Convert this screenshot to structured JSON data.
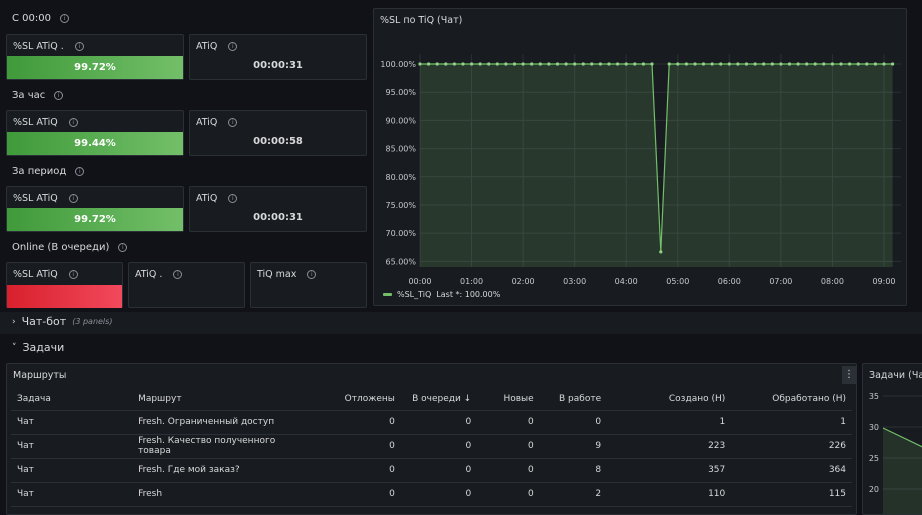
{
  "stats": {
    "row1": {
      "title": "С 00:00",
      "sl_title": "%SL ATiQ .",
      "sl_value": "99.72%",
      "atiq_title": "ATiQ",
      "atiq_value": "00:00:31"
    },
    "row2": {
      "title": "За час",
      "sl_title": "%SL ATiQ",
      "sl_value": "99.44%",
      "atiq_title": "ATiQ",
      "atiq_value": "00:00:58"
    },
    "row3": {
      "title": "За период",
      "sl_title": "%SL ATiQ",
      "sl_value": "99.72%",
      "atiq_title": "ATiQ",
      "atiq_value": "00:00:31"
    },
    "row4": {
      "title": "Online (В очереди)",
      "sl_title": "%SL ATiQ",
      "atiq_title": "ATiQ .",
      "tiq_title": "TiQ max"
    }
  },
  "chart_panel": {
    "title": "%SL по TiQ (Чат)",
    "legend_name": "%SL_TiQ",
    "legend_last": "Last *: 100.00%",
    "series_color": "#73bf69"
  },
  "chart_data": {
    "type": "area",
    "title": "%SL по TiQ (Чат)",
    "yticks": [
      "100.00%",
      "95.00%",
      "90.00%",
      "85.00%",
      "80.00%",
      "75.00%",
      "70.00%",
      "65.00%"
    ],
    "xticks": [
      "00:00",
      "01:00",
      "02:00",
      "03:00",
      "04:00",
      "05:00",
      "06:00",
      "07:00",
      "08:00",
      "09:00"
    ],
    "ylim": [
      64,
      100
    ],
    "xlim_hours": [
      0,
      9.33
    ],
    "series": [
      {
        "name": "%SL_TiQ",
        "color": "#73bf69",
        "dip": {
          "x": 4.67,
          "y": 66.67
        },
        "baseline": 100
      }
    ]
  },
  "sections": {
    "chatbot": {
      "title": "Чат-бот",
      "sub": "(3 panels)"
    },
    "tasks": {
      "title": "Задачи"
    }
  },
  "routes": {
    "title": "Маршруты",
    "menu_icon": "⋮",
    "columns": [
      "Задача",
      "Маршрут",
      "Отложены",
      "В очереди ↓",
      "Новые",
      "В работе",
      "Создано (Н)",
      "Обработано (Н)"
    ],
    "rows": [
      [
        "Чат",
        "Fresh. Ограниченный доступ",
        "0",
        "0",
        "0",
        "0",
        "1",
        "1"
      ],
      [
        "Чат",
        "Fresh. Качество полученного товара",
        "0",
        "0",
        "0",
        "9",
        "223",
        "226"
      ],
      [
        "Чат",
        "Fresh. Где мой заказ?",
        "0",
        "0",
        "0",
        "8",
        "357",
        "364"
      ],
      [
        "Чат",
        "Fresh",
        "0",
        "0",
        "0",
        "2",
        "110",
        "115"
      ]
    ]
  },
  "tasks_chart": {
    "title": "Задачи (Чат",
    "yticks": [
      "35",
      "30",
      "25",
      "20"
    ]
  }
}
